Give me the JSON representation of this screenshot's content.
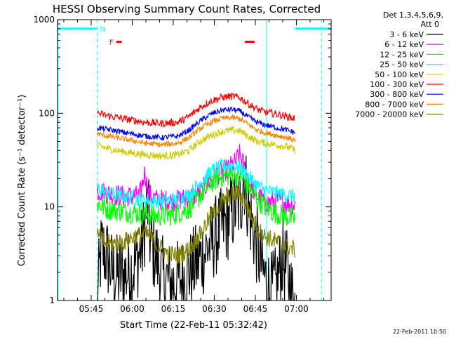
{
  "chart_data": {
    "type": "line",
    "title": "HESSI Observing Summary Count Rates, Corrected",
    "xlabel": "Start Time (22-Feb-11 05:32:42)",
    "ylabel": "Corrected Count Rate (s⁻¹ detector⁻¹)",
    "y_scale": "log",
    "ylim": [
      1,
      1000
    ],
    "x_unit": "minutes after 05:32:42 UT",
    "x_range": [
      0,
      100
    ],
    "xticks": [
      {
        "t": 12.3,
        "label": "05:45"
      },
      {
        "t": 27.3,
        "label": "06:00"
      },
      {
        "t": 42.3,
        "label": "06:15"
      },
      {
        "t": 57.3,
        "label": "06:30"
      },
      {
        "t": 72.3,
        "label": "06:45"
      },
      {
        "t": 87.3,
        "label": "07:00"
      }
    ],
    "yticks": [
      {
        "v": 1,
        "label": "1"
      },
      {
        "v": 10,
        "label": "10"
      },
      {
        "v": 100,
        "label": "100"
      },
      {
        "v": 1000,
        "label": "1000"
      }
    ],
    "legend_header": [
      "Det 1,3,4,5,6,9,",
      "Att 0"
    ],
    "legend_position": "right",
    "data_window": [
      14.5,
      86.8
    ],
    "series": [
      {
        "name": "3 - 6 keV",
        "color": "#000000",
        "noise": 0.45,
        "points": [
          [
            14.5,
            1
          ],
          [
            16,
            3.5
          ],
          [
            18,
            3
          ],
          [
            20,
            2
          ],
          [
            24,
            1.8
          ],
          [
            28,
            2.3
          ],
          [
            31,
            3.8
          ],
          [
            32.8,
            12
          ],
          [
            34,
            4
          ],
          [
            36,
            3
          ],
          [
            38,
            1.8
          ],
          [
            42,
            1.5
          ],
          [
            46,
            1.8
          ],
          [
            50,
            2.3
          ],
          [
            54,
            3.3
          ],
          [
            58,
            5
          ],
          [
            62,
            7
          ],
          [
            65,
            10
          ],
          [
            67,
            11
          ],
          [
            68,
            24
          ],
          [
            70,
            9
          ],
          [
            72,
            5
          ],
          [
            75,
            2
          ],
          [
            78,
            1.2
          ],
          [
            80,
            1.4
          ],
          [
            82,
            2.8
          ],
          [
            84,
            2
          ],
          [
            86,
            1
          ]
        ]
      },
      {
        "name": "6 - 12 keV",
        "color": "#ff00ff",
        "noise": 0.12,
        "points": [
          [
            14.5,
            15
          ],
          [
            18,
            14
          ],
          [
            24,
            13
          ],
          [
            30,
            13
          ],
          [
            32,
            24
          ],
          [
            33,
            14
          ],
          [
            36,
            12
          ],
          [
            42,
            11.5
          ],
          [
            48,
            12.5
          ],
          [
            52,
            14
          ],
          [
            55,
            18
          ],
          [
            58,
            22
          ],
          [
            62,
            25
          ],
          [
            65,
            30
          ],
          [
            66.5,
            36
          ],
          [
            68,
            28
          ],
          [
            70,
            18
          ],
          [
            73,
            13
          ],
          [
            77,
            11
          ],
          [
            80,
            12
          ],
          [
            84,
            11
          ],
          [
            86.8,
            10.5
          ]
        ]
      },
      {
        "name": "12 - 25 keV",
        "color": "#00ff00",
        "noise": 0.12,
        "points": [
          [
            14.5,
            11
          ],
          [
            18,
            9.5
          ],
          [
            24,
            9
          ],
          [
            30,
            8.6
          ],
          [
            36,
            8
          ],
          [
            42,
            8.2
          ],
          [
            48,
            9.5
          ],
          [
            52,
            13
          ],
          [
            56,
            18
          ],
          [
            60,
            21
          ],
          [
            64,
            22
          ],
          [
            67,
            21
          ],
          [
            70,
            16
          ],
          [
            73,
            12
          ],
          [
            76,
            10
          ],
          [
            80,
            8.5
          ],
          [
            86.8,
            7.5
          ]
        ]
      },
      {
        "name": "25 - 50 keV",
        "color": "#00ffff",
        "noise": 0.08,
        "points": [
          [
            14.5,
            16
          ],
          [
            18,
            14
          ],
          [
            24,
            13
          ],
          [
            30,
            12
          ],
          [
            36,
            11.5
          ],
          [
            42,
            11.8
          ],
          [
            48,
            13.5
          ],
          [
            52,
            18
          ],
          [
            56,
            24
          ],
          [
            60,
            27
          ],
          [
            64,
            28
          ],
          [
            67,
            26
          ],
          [
            70,
            21
          ],
          [
            73,
            17
          ],
          [
            76,
            15
          ],
          [
            80,
            14
          ],
          [
            86.8,
            13
          ]
        ]
      },
      {
        "name": "50 - 100 keV",
        "color": "#cccc00",
        "noise": 0.04,
        "points": [
          [
            14.5,
            45
          ],
          [
            20,
            41
          ],
          [
            26,
            38
          ],
          [
            32,
            36
          ],
          [
            38,
            35
          ],
          [
            44,
            36
          ],
          [
            48,
            40
          ],
          [
            52,
            50
          ],
          [
            56,
            58
          ],
          [
            60,
            64
          ],
          [
            64,
            66
          ],
          [
            67,
            64
          ],
          [
            70,
            56
          ],
          [
            73,
            50
          ],
          [
            76,
            48
          ],
          [
            80,
            46
          ],
          [
            84,
            44
          ],
          [
            86.8,
            40
          ]
        ]
      },
      {
        "name": "100 - 300 keV",
        "color": "#ff0000",
        "noise": 0.04,
        "points": [
          [
            14.5,
            100
          ],
          [
            20,
            92
          ],
          [
            26,
            86
          ],
          [
            32,
            80
          ],
          [
            38,
            78
          ],
          [
            44,
            80
          ],
          [
            48,
            92
          ],
          [
            52,
            115
          ],
          [
            56,
            135
          ],
          [
            60,
            148
          ],
          [
            64,
            152
          ],
          [
            67,
            145
          ],
          [
            70,
            125
          ],
          [
            73,
            110
          ],
          [
            76,
            103
          ],
          [
            80,
            98
          ],
          [
            84,
            92
          ],
          [
            86.8,
            88
          ]
        ]
      },
      {
        "name": "300 - 800 keV",
        "color": "#0000ff",
        "noise": 0.03,
        "points": [
          [
            14.5,
            70
          ],
          [
            20,
            66
          ],
          [
            26,
            61
          ],
          [
            32,
            57
          ],
          [
            38,
            55
          ],
          [
            44,
            57
          ],
          [
            48,
            66
          ],
          [
            52,
            82
          ],
          [
            56,
            98
          ],
          [
            60,
            108
          ],
          [
            64,
            110
          ],
          [
            67,
            104
          ],
          [
            70,
            90
          ],
          [
            73,
            80
          ],
          [
            76,
            75
          ],
          [
            80,
            70
          ],
          [
            84,
            66
          ],
          [
            86.8,
            62
          ]
        ]
      },
      {
        "name": "800 - 7000 keV",
        "color": "#ff8000",
        "noise": 0.03,
        "points": [
          [
            14.5,
            60
          ],
          [
            20,
            56
          ],
          [
            26,
            52
          ],
          [
            32,
            48
          ],
          [
            38,
            46
          ],
          [
            44,
            48
          ],
          [
            48,
            55
          ],
          [
            52,
            68
          ],
          [
            56,
            80
          ],
          [
            60,
            88
          ],
          [
            64,
            90
          ],
          [
            67,
            86
          ],
          [
            70,
            75
          ],
          [
            73,
            66
          ],
          [
            76,
            62
          ],
          [
            80,
            58
          ],
          [
            84,
            55
          ],
          [
            86.8,
            52
          ]
        ]
      },
      {
        "name": "7000 - 20000 keV",
        "color": "#808000",
        "noise": 0.1,
        "points": [
          [
            14.5,
            5
          ],
          [
            17,
            4.2
          ],
          [
            20,
            4
          ],
          [
            24,
            4.2
          ],
          [
            28,
            4.8
          ],
          [
            32,
            5.2
          ],
          [
            34,
            4.8
          ],
          [
            36,
            4
          ],
          [
            40,
            3.2
          ],
          [
            44,
            3
          ],
          [
            48,
            3.5
          ],
          [
            52,
            5
          ],
          [
            56,
            8
          ],
          [
            60,
            11
          ],
          [
            64,
            13.5
          ],
          [
            66,
            14
          ],
          [
            68,
            12
          ],
          [
            70,
            9
          ],
          [
            72,
            6.5
          ],
          [
            75,
            5
          ],
          [
            78,
            4.5
          ],
          [
            82,
            4
          ],
          [
            86.8,
            3.5
          ]
        ]
      }
    ],
    "annotations": {
      "N_label": "N",
      "F_label": "F",
      "night_level": 800,
      "night_bars": [
        [
          0,
          14.5
        ],
        [
          86.8,
          100
        ]
      ],
      "night_dashed": [
        14.5,
        96.5
      ],
      "night_solid": 0.2,
      "saa_solid": 76.4,
      "flare_marks": [
        [
          21.5,
          23.5
        ],
        [
          68.5,
          72
        ]
      ],
      "flare_level": 580
    }
  },
  "footer_timestamp": "22-Feb-2011 10:50"
}
